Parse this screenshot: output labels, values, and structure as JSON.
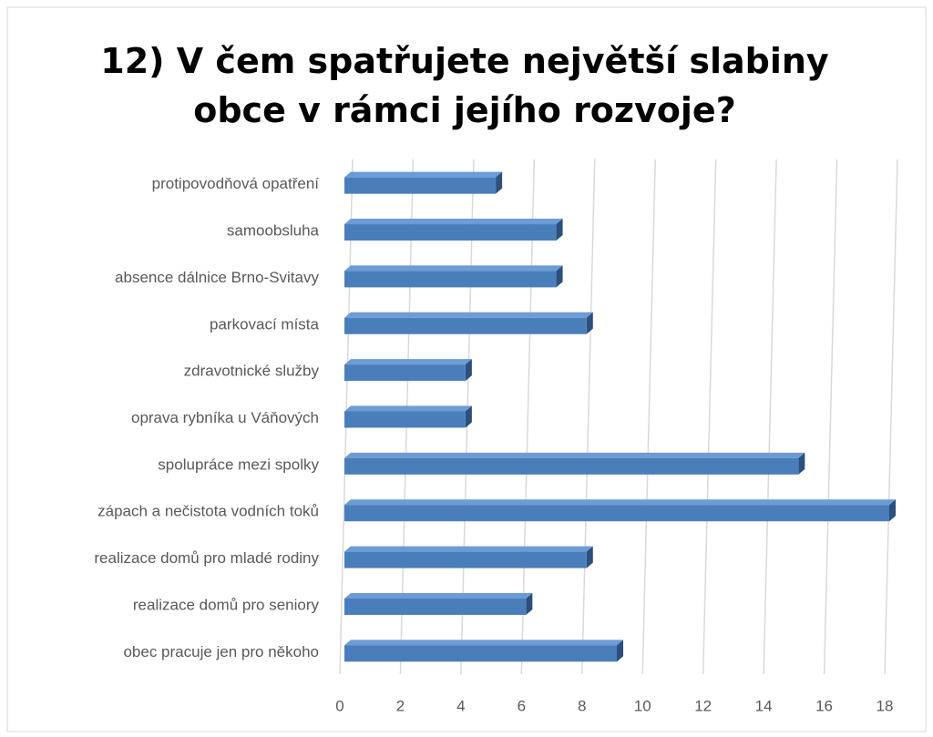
{
  "chart_data": {
    "type": "bar",
    "orientation": "horizontal",
    "title": "12) V čem spatřujete největší slabiny obce v rámci jejího rozvoje?",
    "categories": [
      "protipovodňová opatření",
      "samoobsluha",
      "absence dálnice Brno-Svitavy",
      "parkovací místa",
      "zdravotnické služby",
      "oprava rybníka u Váňových",
      "spolupráce mezi spolky",
      "zápach a nečistota vodních toků",
      "realizace domů pro mladé rodiny",
      "realizace domů pro seniory",
      "obec pracuje jen pro někoho"
    ],
    "values": [
      5,
      7,
      7,
      8,
      4,
      4,
      15,
      18,
      8,
      6,
      9
    ],
    "color": "#4a7ebb",
    "xlim": [
      0,
      18
    ],
    "xticks": [
      0,
      2,
      4,
      6,
      8,
      10,
      12,
      14,
      16,
      18
    ],
    "grid": true
  }
}
